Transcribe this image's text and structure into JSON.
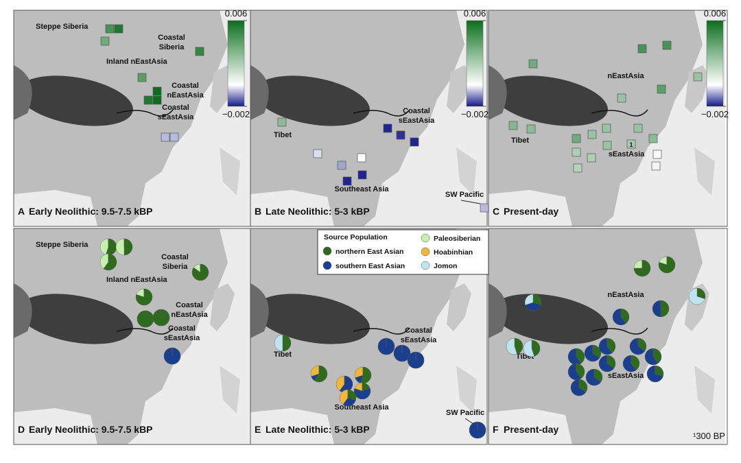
{
  "panels": [
    {
      "letter": "A",
      "title": "Early Neolithic: 9.5-7.5 kBP",
      "labels": [
        {
          "lines": [
            "Steppe Siberia"
          ]
        },
        {
          "lines": [
            "Coastal",
            "Siberia"
          ]
        },
        {
          "lines": [
            "Inland nEastAsia"
          ]
        },
        {
          "lines": [
            "Coastal",
            "nEastAsia"
          ]
        },
        {
          "lines": [
            "Coastal",
            "sEastAsia"
          ]
        }
      ],
      "colorbar": {
        "lim": [
          -0.002,
          0.006
        ],
        "ticks": [
          0.006,
          {
            "value": -0.002,
            "label": "−0.002"
          }
        ]
      },
      "squares": [
        0.0045,
        0.0055,
        0.0035,
        0.005,
        0.004,
        0.006,
        0.006,
        0.0055,
        -0.0006,
        -0.0006
      ]
    },
    {
      "letter": "B",
      "title": "Late Neolithic: 5-3 kBP",
      "labels": [
        {
          "lines": [
            "Tibet"
          ]
        },
        {
          "lines": [
            "Coastal",
            "sEastAsia"
          ]
        },
        {
          "lines": [
            "Southeast Asia"
          ]
        },
        {
          "lines": [
            "SW Pacific"
          ]
        }
      ],
      "colorbar": {
        "lim": [
          -0.002,
          0.006
        ],
        "ticks": [
          0.006,
          {
            "value": -0.002,
            "label": "−0.002"
          }
        ]
      },
      "squares": [
        0.0028,
        -0.0003,
        -0.0008,
        0,
        -0.0019,
        -0.0019,
        -0.0019,
        -0.0018,
        -0.0019,
        -0.0006
      ]
    },
    {
      "letter": "C",
      "title": "Present-day",
      "labels": [
        {
          "lines": [
            "nEastAsia"
          ]
        },
        {
          "lines": [
            "Tibet"
          ]
        },
        {
          "lines": [
            "sEastAsia"
          ]
        }
      ],
      "colorbar": {
        "lim": [
          -0.002,
          0.006
        ],
        "ticks": [
          0.006,
          {
            "value": -0.002,
            "label": "−0.002"
          }
        ]
      },
      "squares": [
        0.0035,
        0.0045,
        0.0045,
        0.0025,
        0.004,
        0.0025,
        0.003,
        0.0028,
        0.0035,
        0.0025,
        0.0025,
        0.0025,
        0.0028,
        0.0025,
        0.0022,
        0.002,
        0.002,
        0.0002,
        0.0018,
        0.0004
      ],
      "square_note": "1"
    },
    {
      "letter": "D",
      "title": "Early Neolithic: 9.5-7.5 kBP",
      "labels": [
        {
          "lines": [
            "Steppe Siberia"
          ]
        },
        {
          "lines": [
            "Coastal",
            "Siberia"
          ]
        },
        {
          "lines": [
            "Inland nEastAsia"
          ]
        },
        {
          "lines": [
            "Coastal",
            "nEastAsia"
          ]
        },
        {
          "lines": [
            "Coastal",
            "sEastAsia"
          ]
        }
      ],
      "pies": [
        [
          55,
          0,
          45,
          0,
          0
        ],
        [
          50,
          0,
          50,
          0,
          0
        ],
        [
          60,
          0,
          40,
          0,
          0
        ],
        [
          85,
          0,
          15,
          0,
          0
        ],
        [
          80,
          0,
          20,
          0,
          0
        ],
        [
          100,
          0,
          0,
          0,
          0
        ],
        [
          100,
          0,
          0,
          0,
          0
        ],
        [
          0,
          100,
          0,
          0,
          0
        ]
      ]
    },
    {
      "letter": "E",
      "title": "Late Neolithic: 5-3 kBP",
      "labels": [
        {
          "lines": [
            "Tibet"
          ]
        },
        {
          "lines": [
            "Coastal",
            "sEastAsia"
          ]
        },
        {
          "lines": [
            "Southeast Asia"
          ]
        },
        {
          "lines": [
            "SW Pacific"
          ]
        }
      ],
      "pies": [
        [
          50,
          0,
          0,
          0,
          50
        ],
        [
          60,
          10,
          0,
          30,
          0
        ],
        [
          55,
          15,
          0,
          30,
          0
        ],
        [
          0,
          60,
          0,
          40,
          0
        ],
        [
          20,
          60,
          0,
          20,
          0
        ],
        [
          30,
          30,
          0,
          40,
          0
        ],
        [
          0,
          100,
          0,
          0,
          0
        ],
        [
          0,
          100,
          0,
          0,
          0
        ],
        [
          0,
          100,
          0,
          0,
          0
        ],
        [
          0,
          100,
          0,
          0,
          0
        ]
      ]
    },
    {
      "letter": "F",
      "title": "Present-day",
      "labels": [
        {
          "lines": [
            "nEastAsia"
          ]
        },
        {
          "lines": [
            "Tibet"
          ]
        },
        {
          "lines": [
            "sEastAsia"
          ]
        }
      ],
      "pies": [
        [
          30,
          40,
          0,
          0,
          30
        ],
        [
          75,
          0,
          25,
          0,
          0
        ],
        [
          80,
          0,
          20,
          0,
          0
        ],
        [
          30,
          0,
          0,
          0,
          70
        ],
        [
          50,
          50,
          0,
          0,
          0
        ],
        [
          40,
          60,
          0,
          0,
          0
        ],
        [
          45,
          0,
          0,
          0,
          55
        ],
        [
          45,
          0,
          0,
          0,
          55
        ],
        [
          40,
          60,
          0,
          0,
          0
        ],
        [
          35,
          65,
          0,
          0,
          0
        ],
        [
          40,
          60,
          0,
          0,
          0
        ],
        [
          35,
          65,
          0,
          0,
          0
        ],
        [
          40,
          60,
          0,
          0,
          0
        ],
        [
          35,
          65,
          0,
          0,
          0
        ],
        [
          40,
          60,
          0,
          0,
          0
        ],
        [
          40,
          60,
          0,
          0,
          0
        ],
        [
          35,
          65,
          0,
          0,
          0
        ],
        [
          30,
          70,
          0,
          0,
          0
        ],
        [
          35,
          65,
          0,
          0,
          0
        ]
      ]
    }
  ],
  "legend": {
    "title": "Source Population",
    "sources": [
      {
        "name": "northern East Asian",
        "color": "#2f6b1f"
      },
      {
        "name": "southern East Asian",
        "color": "#1a3f8f"
      },
      {
        "name": "Paleosiberian",
        "color": "#c8eeb0"
      },
      {
        "name": "Hoabinhian",
        "color": "#f0b73a"
      },
      {
        "name": "Jomon",
        "color": "#bfe4f0"
      }
    ]
  },
  "footnote": "¹300 BP"
}
